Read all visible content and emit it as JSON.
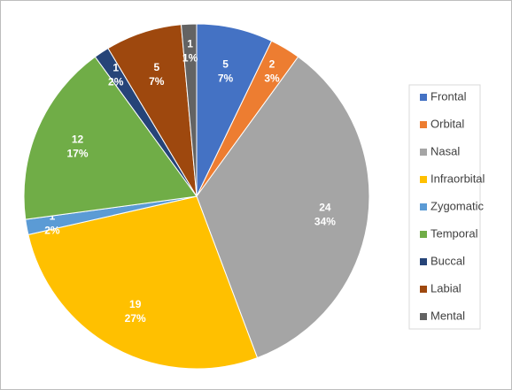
{
  "chart_data": {
    "type": "pie",
    "categories": [
      "Frontal",
      "Orbital",
      "Nasal",
      "Infraorbital",
      "Zygomatic",
      "Temporal",
      "Buccal",
      "Labial",
      "Mental"
    ],
    "values": [
      5,
      2,
      24,
      19,
      1,
      12,
      1,
      5,
      1
    ],
    "percent_labels": [
      "7%",
      "3%",
      "34%",
      "27%",
      "2%",
      "17%",
      "2%",
      "7%",
      "1%"
    ],
    "colors": [
      "#4472c4",
      "#ed7d31",
      "#a5a5a5",
      "#ffc000",
      "#5b9bd5",
      "#70ad47",
      "#264478",
      "#9e480e",
      "#636363"
    ],
    "legend": "right"
  }
}
